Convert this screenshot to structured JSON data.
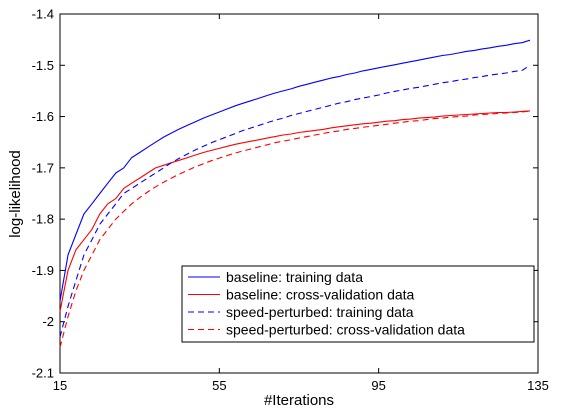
{
  "chart_data": {
    "type": "line",
    "title": "",
    "xlabel": "#Iterations",
    "ylabel": "log-likelihood",
    "xlim": [
      15,
      135
    ],
    "ylim": [
      -2.1,
      -1.4
    ],
    "xticks": [
      15,
      55,
      95,
      135
    ],
    "yticks": [
      -2.1,
      -2.0,
      -1.9,
      -1.8,
      -1.7,
      -1.6,
      -1.5,
      -1.4
    ],
    "xtick_labels": [
      "15",
      "55",
      "95",
      "135"
    ],
    "ytick_labels": [
      "-2.1",
      "-2",
      "-1.9",
      "-1.8",
      "-1.7",
      "-1.6",
      "-1.5",
      "-1.4"
    ],
    "grid": false,
    "legend_position": "bottom-right",
    "series": [
      {
        "name": "baseline: training data",
        "color": "#0000ff",
        "dash": "solid",
        "x": [
          15,
          17,
          19,
          21,
          23,
          25,
          27,
          29,
          31,
          33,
          35,
          37,
          39,
          41,
          43,
          45,
          47,
          49,
          51,
          53,
          55,
          57,
          59,
          61,
          63,
          65,
          67,
          69,
          71,
          73,
          75,
          77,
          79,
          81,
          83,
          85,
          87,
          89,
          91,
          93,
          95,
          97,
          99,
          101,
          103,
          105,
          107,
          109,
          111,
          113,
          115,
          117,
          119,
          121,
          123,
          125,
          127,
          129,
          131,
          133
        ],
        "y": [
          -1.96,
          -1.87,
          -1.83,
          -1.79,
          -1.77,
          -1.75,
          -1.73,
          -1.71,
          -1.7,
          -1.68,
          -1.67,
          -1.66,
          -1.65,
          -1.64,
          -1.632,
          -1.624,
          -1.617,
          -1.61,
          -1.603,
          -1.597,
          -1.591,
          -1.585,
          -1.579,
          -1.574,
          -1.569,
          -1.564,
          -1.559,
          -1.554,
          -1.55,
          -1.546,
          -1.541,
          -1.537,
          -1.533,
          -1.529,
          -1.525,
          -1.522,
          -1.518,
          -1.515,
          -1.511,
          -1.508,
          -1.505,
          -1.502,
          -1.499,
          -1.496,
          -1.493,
          -1.49,
          -1.487,
          -1.484,
          -1.481,
          -1.479,
          -1.476,
          -1.473,
          -1.471,
          -1.468,
          -1.466,
          -1.463,
          -1.461,
          -1.458,
          -1.456,
          -1.451
        ]
      },
      {
        "name": "baseline: cross-validation data",
        "color": "#ff0000",
        "dash": "solid",
        "x": [
          15,
          17,
          19,
          21,
          23,
          25,
          27,
          29,
          31,
          33,
          35,
          37,
          39,
          41,
          43,
          45,
          47,
          49,
          51,
          53,
          55,
          57,
          59,
          61,
          63,
          65,
          67,
          69,
          71,
          73,
          75,
          77,
          79,
          81,
          83,
          85,
          87,
          89,
          91,
          93,
          95,
          97,
          99,
          101,
          103,
          105,
          107,
          109,
          111,
          113,
          115,
          117,
          119,
          121,
          123,
          125,
          127,
          129,
          131,
          133
        ],
        "y": [
          -1.98,
          -1.9,
          -1.86,
          -1.84,
          -1.82,
          -1.79,
          -1.77,
          -1.76,
          -1.74,
          -1.73,
          -1.72,
          -1.71,
          -1.7,
          -1.695,
          -1.69,
          -1.685,
          -1.68,
          -1.675,
          -1.67,
          -1.666,
          -1.662,
          -1.658,
          -1.654,
          -1.651,
          -1.648,
          -1.645,
          -1.642,
          -1.639,
          -1.636,
          -1.634,
          -1.631,
          -1.629,
          -1.627,
          -1.625,
          -1.622,
          -1.62,
          -1.618,
          -1.616,
          -1.614,
          -1.613,
          -1.611,
          -1.609,
          -1.608,
          -1.606,
          -1.605,
          -1.603,
          -1.602,
          -1.601,
          -1.599,
          -1.598,
          -1.597,
          -1.596,
          -1.595,
          -1.594,
          -1.593,
          -1.592,
          -1.592,
          -1.591,
          -1.59,
          -1.589
        ]
      },
      {
        "name": "speed-perturbed: training data",
        "color": "#0000ff",
        "dash": "dashed",
        "x": [
          15,
          17,
          19,
          21,
          23,
          25,
          27,
          29,
          31,
          33,
          35,
          37,
          39,
          41,
          43,
          45,
          47,
          49,
          51,
          53,
          55,
          57,
          59,
          61,
          63,
          65,
          67,
          69,
          71,
          73,
          75,
          77,
          79,
          81,
          83,
          85,
          87,
          89,
          91,
          93,
          95,
          97,
          99,
          101,
          103,
          105,
          107,
          109,
          111,
          113,
          115,
          117,
          119,
          121,
          123,
          125,
          127,
          129,
          131,
          133
        ],
        "y": [
          -2.03,
          -1.97,
          -1.92,
          -1.87,
          -1.84,
          -1.81,
          -1.79,
          -1.77,
          -1.75,
          -1.74,
          -1.73,
          -1.72,
          -1.71,
          -1.7,
          -1.69,
          -1.681,
          -1.673,
          -1.665,
          -1.658,
          -1.651,
          -1.645,
          -1.639,
          -1.633,
          -1.627,
          -1.622,
          -1.617,
          -1.612,
          -1.607,
          -1.603,
          -1.598,
          -1.594,
          -1.59,
          -1.586,
          -1.582,
          -1.578,
          -1.574,
          -1.571,
          -1.567,
          -1.564,
          -1.561,
          -1.558,
          -1.554,
          -1.551,
          -1.548,
          -1.545,
          -1.543,
          -1.54,
          -1.537,
          -1.534,
          -1.532,
          -1.529,
          -1.527,
          -1.524,
          -1.522,
          -1.519,
          -1.517,
          -1.515,
          -1.512,
          -1.51,
          -1.5
        ]
      },
      {
        "name": "speed-perturbed: cross-validation data",
        "color": "#ff0000",
        "dash": "dashed",
        "x": [
          15,
          17,
          19,
          21,
          23,
          25,
          27,
          29,
          31,
          33,
          35,
          37,
          39,
          41,
          43,
          45,
          47,
          49,
          51,
          53,
          55,
          57,
          59,
          61,
          63,
          65,
          67,
          69,
          71,
          73,
          75,
          77,
          79,
          81,
          83,
          85,
          87,
          89,
          91,
          93,
          95,
          97,
          99,
          101,
          103,
          105,
          107,
          109,
          111,
          113,
          115,
          117,
          119,
          121,
          123,
          125,
          127,
          129,
          131,
          133
        ],
        "y": [
          -2.05,
          -1.99,
          -1.94,
          -1.9,
          -1.87,
          -1.84,
          -1.82,
          -1.8,
          -1.785,
          -1.77,
          -1.758,
          -1.747,
          -1.737,
          -1.728,
          -1.72,
          -1.712,
          -1.705,
          -1.698,
          -1.692,
          -1.686,
          -1.681,
          -1.676,
          -1.671,
          -1.667,
          -1.663,
          -1.659,
          -1.655,
          -1.651,
          -1.648,
          -1.645,
          -1.642,
          -1.639,
          -1.636,
          -1.633,
          -1.63,
          -1.628,
          -1.625,
          -1.623,
          -1.621,
          -1.619,
          -1.617,
          -1.615,
          -1.613,
          -1.611,
          -1.609,
          -1.608,
          -1.606,
          -1.604,
          -1.603,
          -1.601,
          -1.6,
          -1.599,
          -1.597,
          -1.596,
          -1.595,
          -1.594,
          -1.593,
          -1.592,
          -1.591,
          -1.589
        ]
      }
    ]
  }
}
